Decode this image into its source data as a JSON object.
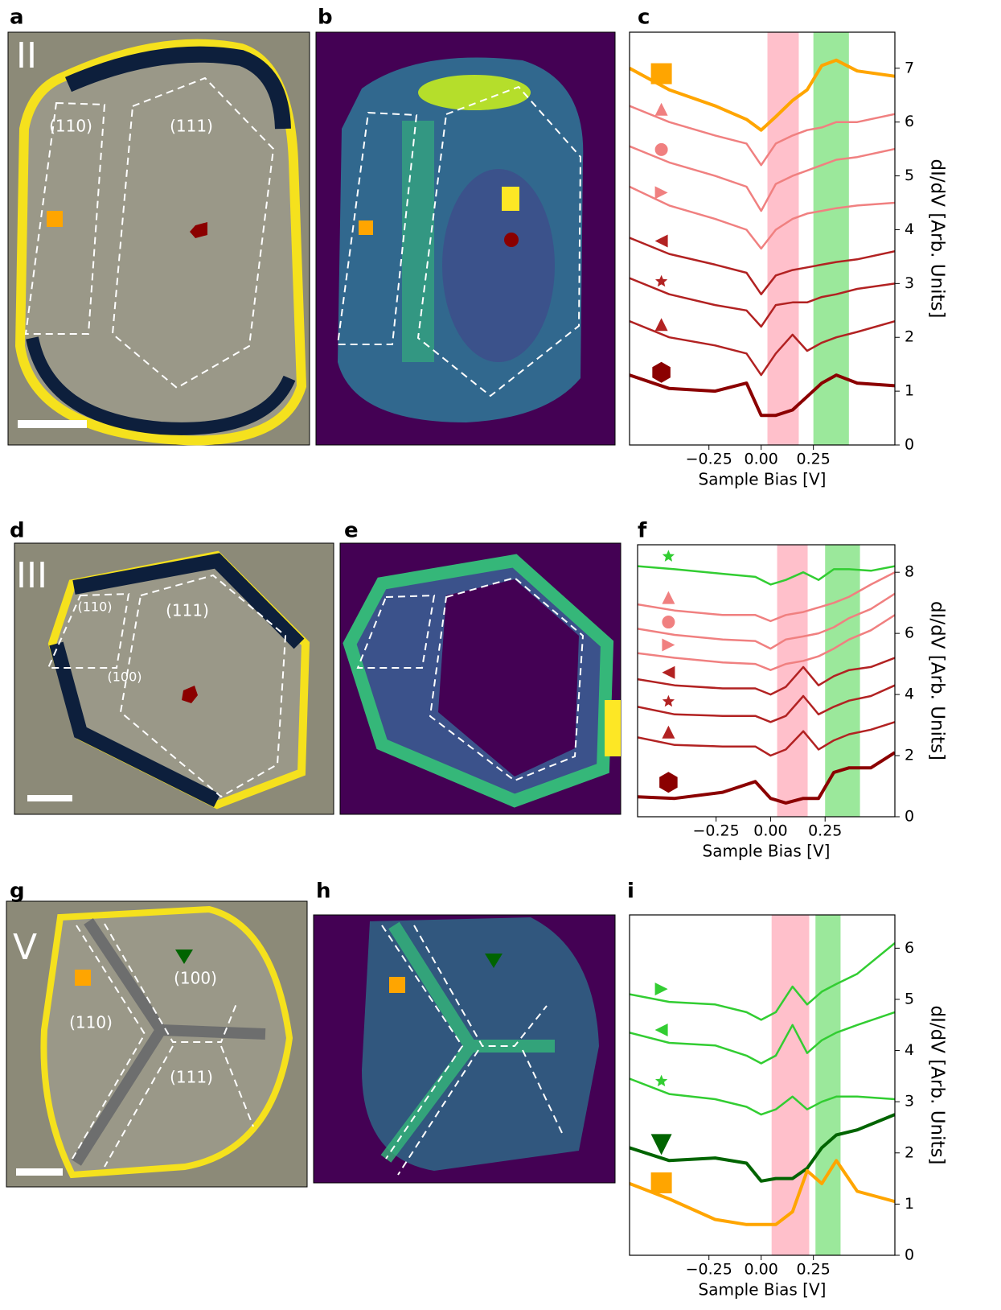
{
  "panel_letters": [
    "a",
    "b",
    "c",
    "d",
    "e",
    "f",
    "g",
    "h",
    "i"
  ],
  "images": {
    "a": [
      "II",
      "(110)",
      "(111)"
    ],
    "d": [
      "III",
      "(110)",
      "(111)",
      "(100)"
    ],
    "g": [
      "V",
      "(100)",
      "(110)",
      "(111)"
    ]
  },
  "chart_data": [
    {
      "type": "line",
      "xlabel": "Sample Bias [V]",
      "ylabel": "dI/dV [Arb. Units]",
      "xlim": [
        -0.63,
        0.64
      ],
      "ylim": [
        0,
        7.67
      ],
      "xticks": [
        {
          "value": -0.25,
          "label": "−0.25"
        },
        {
          "value": 0,
          "label": "0.00"
        },
        {
          "value": 0.25,
          "label": "0.25"
        }
      ],
      "yticks": [
        0,
        1,
        2,
        3,
        4,
        5,
        6,
        7
      ],
      "spans": [
        {
          "range": [
            0.03,
            0.18
          ],
          "color": "#ffc0cb"
        },
        {
          "range": [
            0.25,
            0.42
          ],
          "color": "#9be89b"
        }
      ],
      "x": [
        -0.63,
        -0.44,
        -0.22,
        -0.07,
        0,
        0.07,
        0.15,
        0.22,
        0.29,
        0.36,
        0.46,
        0.64
      ],
      "series": [
        {
          "color": "#ffa500",
          "marker": "square",
          "linewidth": 4,
          "values": [
            7.0,
            6.6,
            6.3,
            6.05,
            5.85,
            6.1,
            6.4,
            6.6,
            7.05,
            7.15,
            6.95,
            6.85
          ]
        },
        {
          "color": "#f08080",
          "marker": "triangle-up",
          "linewidth": 2.5,
          "values": [
            6.3,
            6.0,
            5.75,
            5.6,
            5.2,
            5.6,
            5.75,
            5.85,
            5.9,
            6.0,
            6.0,
            6.15
          ]
        },
        {
          "color": "#f08080",
          "marker": "circle",
          "linewidth": 2.5,
          "values": [
            5.55,
            5.25,
            5.0,
            4.8,
            4.35,
            4.85,
            5.0,
            5.1,
            5.2,
            5.3,
            5.35,
            5.5
          ]
        },
        {
          "color": "#f08080",
          "marker": "triangle-right",
          "linewidth": 2.5,
          "values": [
            4.8,
            4.45,
            4.2,
            4.0,
            3.65,
            4.0,
            4.2,
            4.3,
            4.35,
            4.4,
            4.45,
            4.5
          ]
        },
        {
          "color": "#b22222",
          "marker": "triangle-left",
          "linewidth": 2.5,
          "values": [
            3.85,
            3.55,
            3.35,
            3.2,
            2.8,
            3.15,
            3.25,
            3.3,
            3.35,
            3.4,
            3.45,
            3.6
          ]
        },
        {
          "color": "#b22222",
          "marker": "star",
          "linewidth": 2.5,
          "values": [
            3.1,
            2.8,
            2.6,
            2.5,
            2.2,
            2.6,
            2.65,
            2.65,
            2.75,
            2.8,
            2.9,
            3.0
          ]
        },
        {
          "color": "#b22222",
          "marker": "triangle-up",
          "linewidth": 2.5,
          "values": [
            2.3,
            2.0,
            1.85,
            1.7,
            1.3,
            1.7,
            2.05,
            1.75,
            1.9,
            2.0,
            2.1,
            2.3
          ]
        },
        {
          "color": "#8b0000",
          "marker": "hexagon",
          "linewidth": 4,
          "values": [
            1.3,
            1.05,
            1.0,
            1.15,
            0.55,
            0.55,
            0.65,
            0.9,
            1.15,
            1.3,
            1.15,
            1.1
          ]
        }
      ]
    },
    {
      "type": "line",
      "xlabel": "Sample Bias [V]",
      "ylabel": "dI/dV [Arb. Units]",
      "xlim": [
        -0.61,
        0.57
      ],
      "ylim": [
        0,
        8.9
      ],
      "xticks": [
        {
          "value": -0.25,
          "label": "−0.25"
        },
        {
          "value": 0,
          "label": "0.00"
        },
        {
          "value": 0.25,
          "label": "0.25"
        }
      ],
      "yticks": [
        0,
        2,
        4,
        6,
        8
      ],
      "spans": [
        {
          "range": [
            0.03,
            0.17
          ],
          "color": "#ffc0cb"
        },
        {
          "range": [
            0.25,
            0.41
          ],
          "color": "#9be89b"
        }
      ],
      "x": [
        -0.61,
        -0.44,
        -0.22,
        -0.07,
        0,
        0.07,
        0.15,
        0.22,
        0.29,
        0.36,
        0.46,
        0.57
      ],
      "series": [
        {
          "color": "#32cd32",
          "marker": "star",
          "linewidth": 2.5,
          "values": [
            8.2,
            8.1,
            7.95,
            7.85,
            7.6,
            7.75,
            8.0,
            7.75,
            8.1,
            8.1,
            8.05,
            8.2
          ]
        },
        {
          "color": "#f08080",
          "marker": "triangle-up",
          "linewidth": 2.5,
          "values": [
            6.95,
            6.75,
            6.6,
            6.6,
            6.4,
            6.6,
            6.7,
            6.85,
            7.0,
            7.2,
            7.6,
            8.0
          ]
        },
        {
          "color": "#f08080",
          "marker": "circle",
          "linewidth": 2.5,
          "values": [
            6.15,
            5.95,
            5.8,
            5.75,
            5.5,
            5.8,
            5.9,
            6.0,
            6.2,
            6.5,
            6.8,
            7.3
          ]
        },
        {
          "color": "#f08080",
          "marker": "triangle-right",
          "linewidth": 2.5,
          "values": [
            5.35,
            5.2,
            5.05,
            5.0,
            4.8,
            5.0,
            5.1,
            5.25,
            5.5,
            5.8,
            6.1,
            6.6
          ]
        },
        {
          "color": "#b22222",
          "marker": "triangle-left",
          "linewidth": 2.5,
          "values": [
            4.5,
            4.3,
            4.2,
            4.2,
            4.0,
            4.25,
            4.9,
            4.3,
            4.6,
            4.8,
            4.9,
            5.2
          ]
        },
        {
          "color": "#b22222",
          "marker": "star",
          "linewidth": 2.5,
          "values": [
            3.6,
            3.35,
            3.3,
            3.3,
            3.1,
            3.3,
            3.95,
            3.35,
            3.6,
            3.8,
            3.95,
            4.3
          ]
        },
        {
          "color": "#b22222",
          "marker": "triangle-up",
          "linewidth": 2.5,
          "values": [
            2.6,
            2.35,
            2.3,
            2.3,
            2.0,
            2.2,
            2.8,
            2.2,
            2.5,
            2.7,
            2.85,
            3.1
          ]
        },
        {
          "color": "#8b0000",
          "marker": "hexagon",
          "linewidth": 4,
          "values": [
            0.65,
            0.6,
            0.8,
            1.15,
            0.6,
            0.45,
            0.6,
            0.6,
            1.45,
            1.6,
            1.6,
            2.1
          ]
        }
      ]
    },
    {
      "type": "line",
      "xlabel": "Sample Bias [V]",
      "ylabel": "dI/dV [Arb. Units]",
      "xlim": [
        -0.63,
        0.64
      ],
      "ylim": [
        0,
        6.65
      ],
      "xticks": [
        {
          "value": -0.25,
          "label": "−0.25"
        },
        {
          "value": 0,
          "label": "0.00"
        },
        {
          "value": 0.25,
          "label": "0.25"
        }
      ],
      "yticks": [
        0,
        1,
        2,
        3,
        4,
        5,
        6
      ],
      "spans": [
        {
          "range": [
            0.05,
            0.23
          ],
          "color": "#ffc0cb"
        },
        {
          "range": [
            0.26,
            0.38
          ],
          "color": "#9be89b"
        }
      ],
      "x": [
        -0.63,
        -0.44,
        -0.22,
        -0.07,
        0,
        0.07,
        0.15,
        0.22,
        0.29,
        0.36,
        0.46,
        0.64
      ],
      "series": [
        {
          "color": "#32cd32",
          "marker": "triangle-right",
          "linewidth": 2.5,
          "values": [
            5.1,
            4.95,
            4.9,
            4.75,
            4.6,
            4.75,
            5.25,
            4.9,
            5.15,
            5.3,
            5.5,
            6.1
          ]
        },
        {
          "color": "#32cd32",
          "marker": "triangle-left",
          "linewidth": 2.5,
          "values": [
            4.35,
            4.15,
            4.1,
            3.9,
            3.75,
            3.9,
            4.5,
            3.95,
            4.2,
            4.35,
            4.5,
            4.75
          ]
        },
        {
          "color": "#32cd32",
          "marker": "star",
          "linewidth": 2.5,
          "values": [
            3.45,
            3.15,
            3.05,
            2.9,
            2.75,
            2.85,
            3.1,
            2.85,
            3.0,
            3.1,
            3.1,
            3.05
          ]
        },
        {
          "color": "#006400",
          "marker": "triangle-down",
          "linewidth": 4,
          "values": [
            2.1,
            1.85,
            1.9,
            1.8,
            1.45,
            1.5,
            1.5,
            1.7,
            2.1,
            2.35,
            2.45,
            2.75
          ]
        },
        {
          "color": "#ffa500",
          "marker": "square",
          "linewidth": 4,
          "values": [
            1.4,
            1.1,
            0.7,
            0.6,
            0.6,
            0.6,
            0.85,
            1.65,
            1.4,
            1.85,
            1.25,
            1.05
          ]
        }
      ]
    }
  ]
}
